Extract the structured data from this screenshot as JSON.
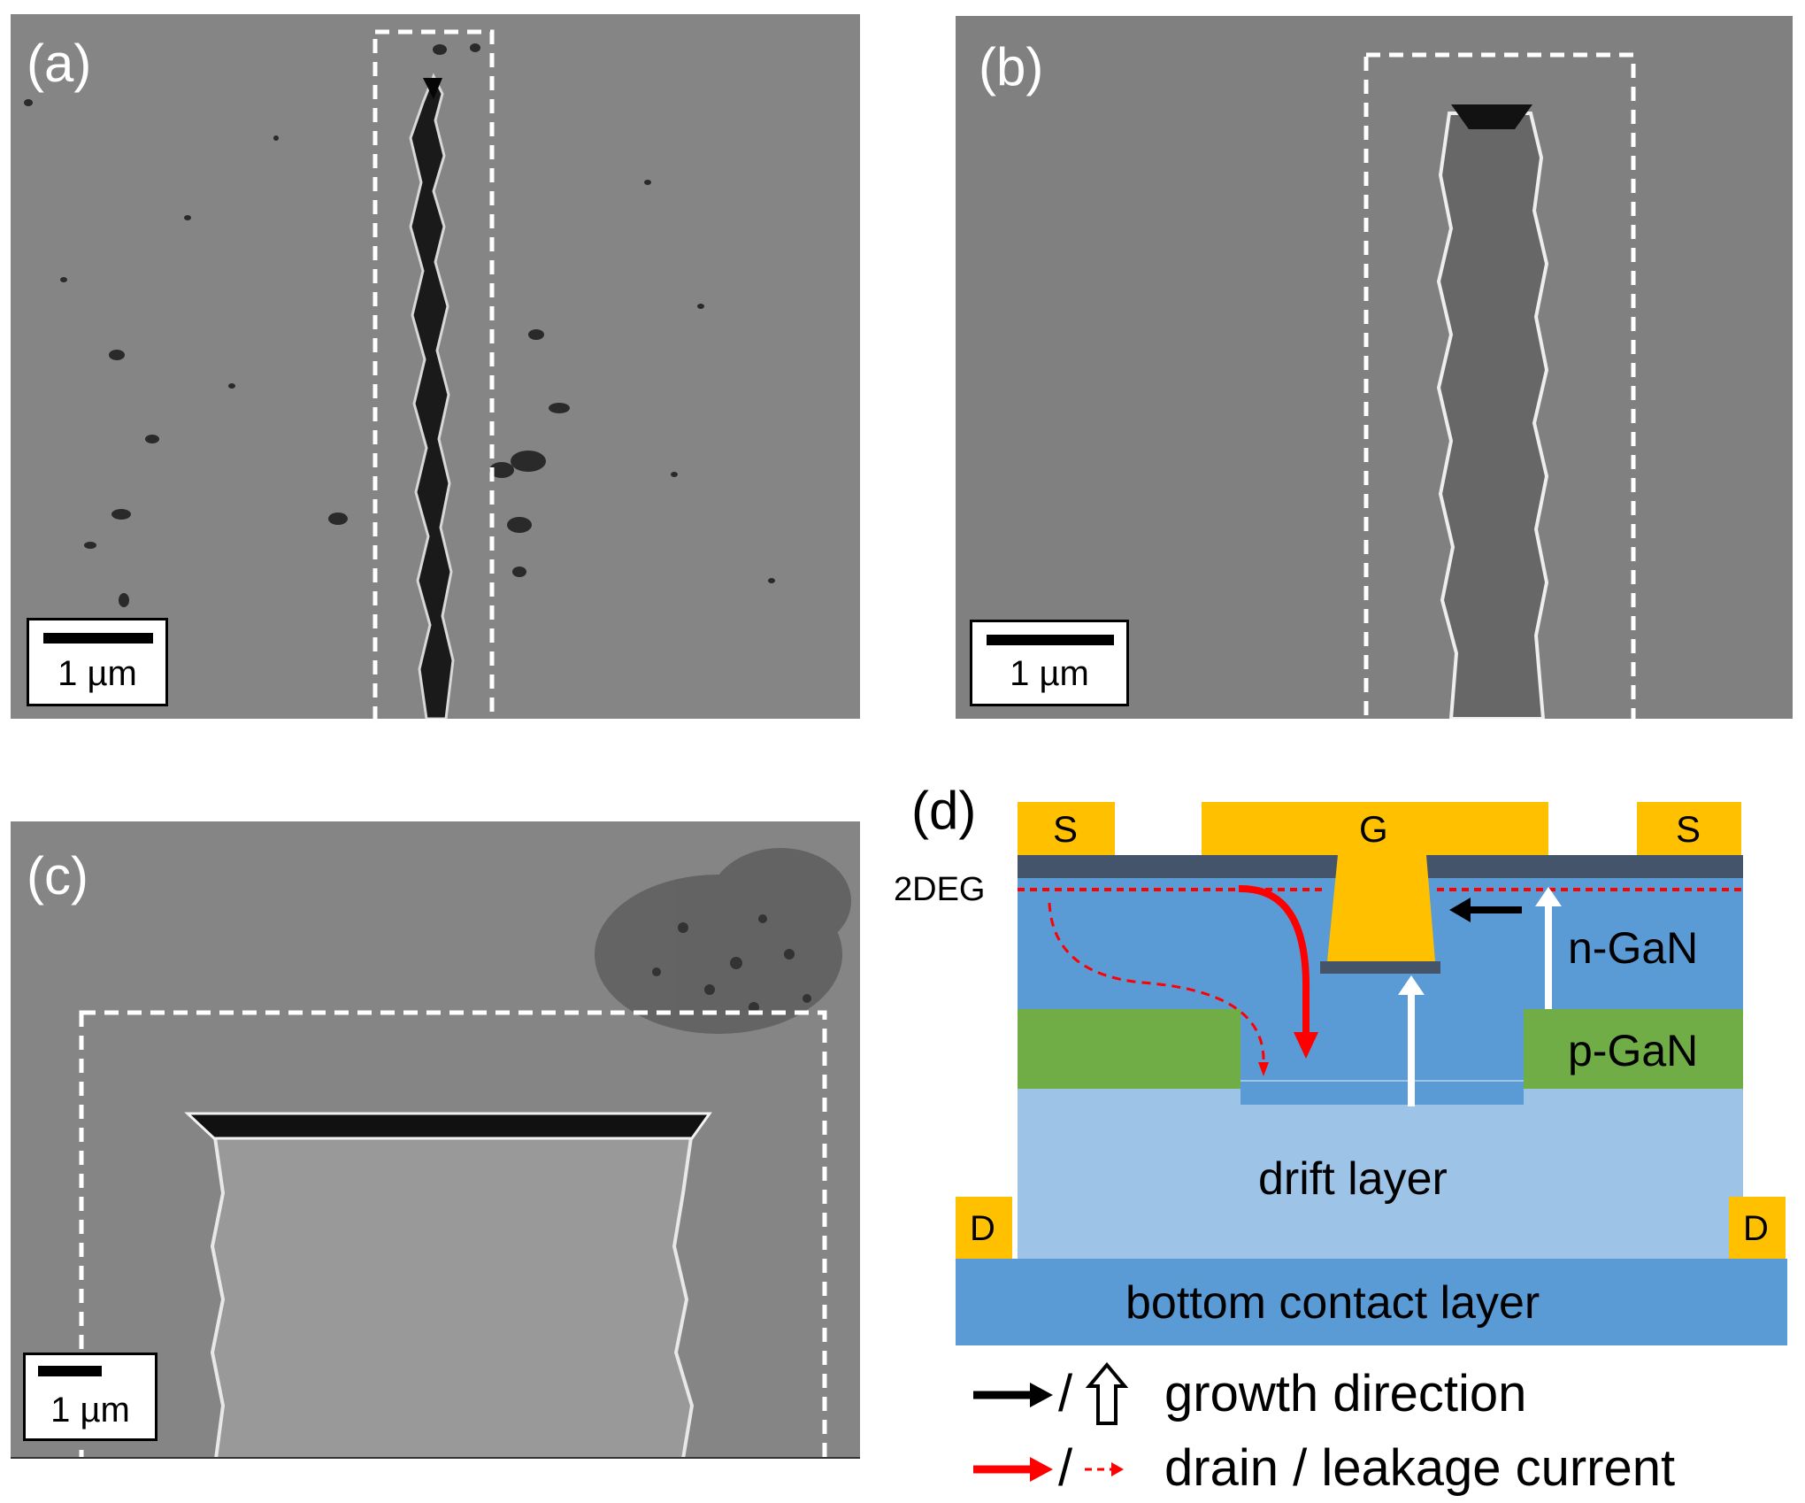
{
  "panels": {
    "a": {
      "label": "(a)",
      "scale_label": "1 µm"
    },
    "b": {
      "label": "(b)",
      "scale_label": "1 µm"
    },
    "c": {
      "label": "(c)",
      "scale_label": "1 µm"
    },
    "d": {
      "label": "(d)",
      "electrodes": {
        "source_left": "S",
        "gate": "G",
        "source_right": "S",
        "drain_left": "D",
        "drain_right": "D"
      },
      "labels": {
        "twodeg": "2DEG",
        "n_gan": "n-GaN",
        "p_gan": "p-GaN",
        "drift": "drift layer",
        "bottom": "bottom contact layer"
      },
      "legend": {
        "growth_text": "growth direction",
        "current_text": "drain / leakage current",
        "slash": "/"
      },
      "colors": {
        "electrode": "#FFC000",
        "barrier": "#44546A",
        "n_gan": "#5B9BD5",
        "p_gan": "#70AD47",
        "drift": "#9DC3E6",
        "bottom_contact": "#5B9BD5",
        "current": "#FF0000"
      }
    }
  }
}
